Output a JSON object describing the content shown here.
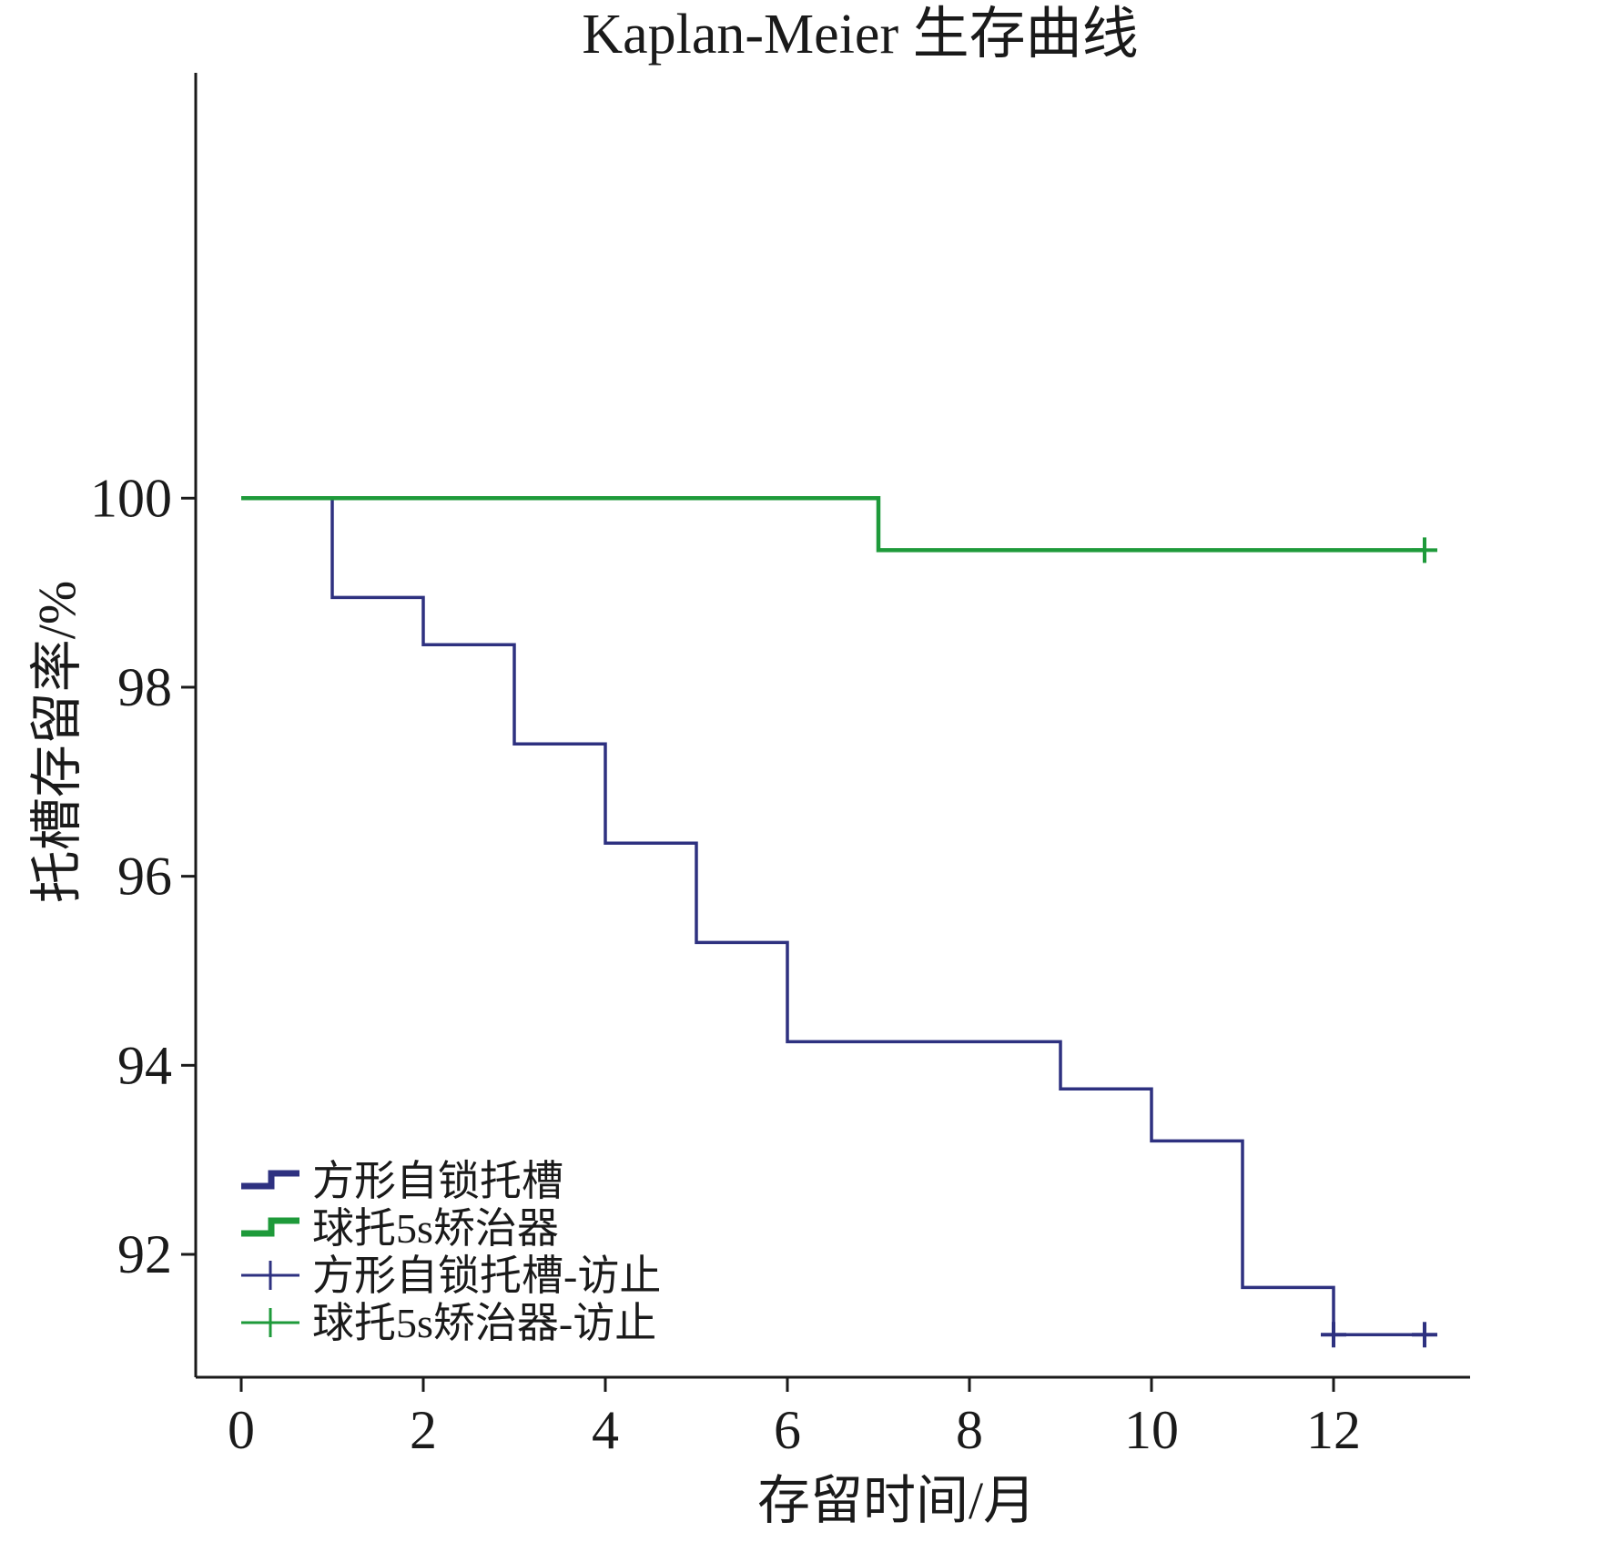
{
  "chart_data": {
    "type": "line",
    "title": "Kaplan-Meier 生存曲线",
    "xlabel": "存留时间/月",
    "ylabel": "托槽存留率/%",
    "xlim": [
      -0.5,
      13.5
    ],
    "ylim": [
      90.7,
      104.5
    ],
    "xticks": [
      0,
      2,
      4,
      6,
      8,
      10,
      12
    ],
    "yticks": [
      92,
      94,
      96,
      98,
      100
    ],
    "grid": false,
    "legend_position": "bottom-left",
    "series": [
      {
        "name": "方形自锁托槽",
        "color": "#2e3180",
        "step": true,
        "x": [
          0,
          1,
          2,
          3,
          4,
          5,
          6,
          9,
          10,
          11,
          12,
          13
        ],
        "y": [
          100,
          98.95,
          98.45,
          97.4,
          96.35,
          95.3,
          94.25,
          93.75,
          93.2,
          91.65,
          91.15,
          91.15
        ],
        "censored_x": [
          12,
          13
        ],
        "censored_y": [
          91.15,
          91.15
        ]
      },
      {
        "name": "球托5s矫治器",
        "color": "#1e9a3a",
        "step": true,
        "x": [
          0,
          7,
          13
        ],
        "y": [
          100,
          99.45,
          99.45
        ],
        "censored_x": [
          13
        ],
        "censored_y": [
          99.45
        ]
      }
    ],
    "legend": [
      {
        "label": "方形自锁托槽",
        "marker": "step",
        "color": "#2e3180"
      },
      {
        "label": "球托5s矫治器",
        "marker": "step",
        "color": "#1e9a3a"
      },
      {
        "label": "方形自锁托槽-访止",
        "marker": "cross",
        "color": "#2e3180"
      },
      {
        "label": "球托5s矫治器-访止",
        "marker": "cross",
        "color": "#1e9a3a"
      }
    ]
  }
}
